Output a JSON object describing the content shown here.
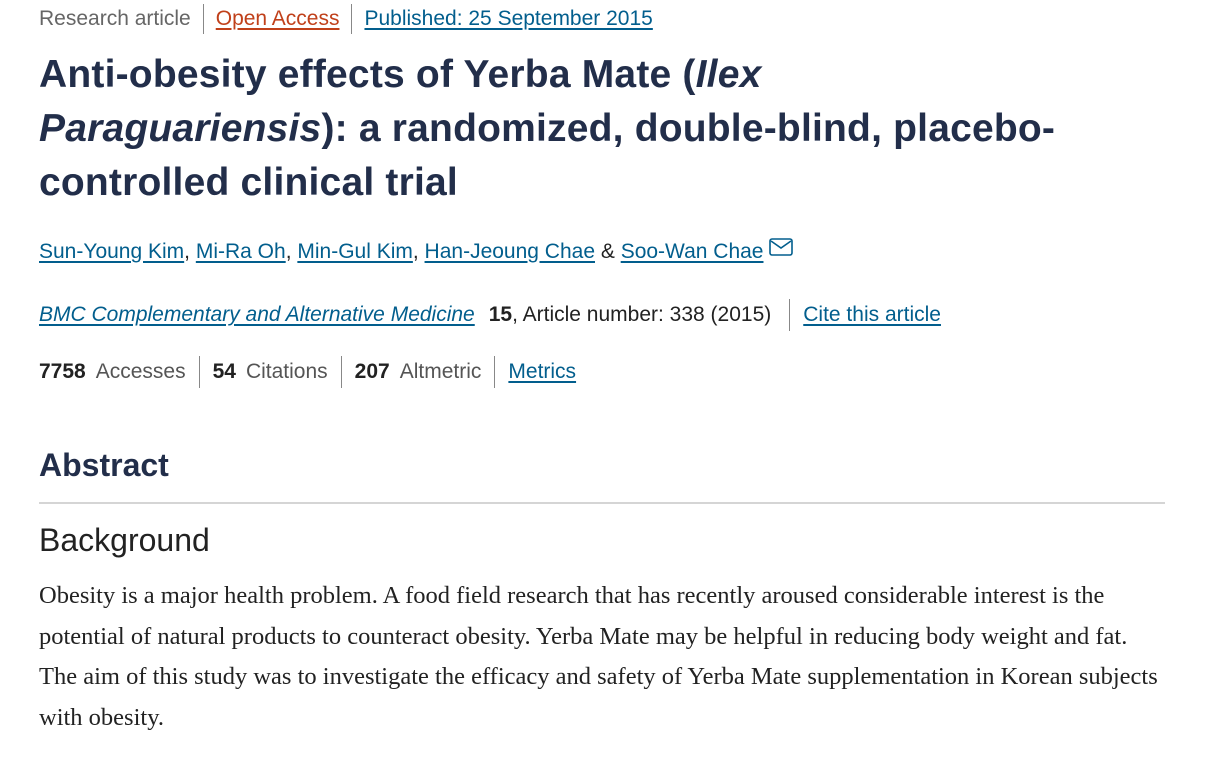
{
  "meta": {
    "type": "Research article",
    "access": "Open Access",
    "published": "Published: 25 September 2015"
  },
  "title": {
    "part1": "Anti-obesity effects of Yerba Mate (",
    "italic1": "Ilex",
    "italic2": "Paraguariensis",
    "part2": "): a randomized, double-blind, placebo-controlled clinical trial"
  },
  "authors": [
    "Sun-Young Kim",
    "Mi-Ra Oh",
    "Min-Gul Kim",
    "Han-Jeoung Chae",
    "Soo-Wan Chae"
  ],
  "author_sep": ", ",
  "author_and": " & ",
  "author_icon": "envelope-icon",
  "journal": {
    "name": "BMC Complementary and Alternative Medicine",
    "volume": "15",
    "article": ", Article number: 338 (2015)",
    "cite": "Cite this article"
  },
  "metrics": {
    "accesses_count": "7758",
    "accesses_label": "Accesses",
    "citations_count": "54",
    "citations_label": "Citations",
    "altmetric_count": "207",
    "altmetric_label": "Altmetric",
    "link": "Metrics"
  },
  "abstract": {
    "heading": "Abstract",
    "section": "Background",
    "text": "Obesity is a major health problem. A food field research that has recently aroused considerable interest is the potential of natural products to counteract obesity. Yerba Mate may be helpful in reducing body weight and fat. The aim of this study was to investigate the efficacy and safety of Yerba Mate supplementation in Korean subjects with obesity."
  },
  "colors": {
    "link": "#025e8d",
    "open_access": "#c0401a",
    "heading": "#222e4a"
  }
}
